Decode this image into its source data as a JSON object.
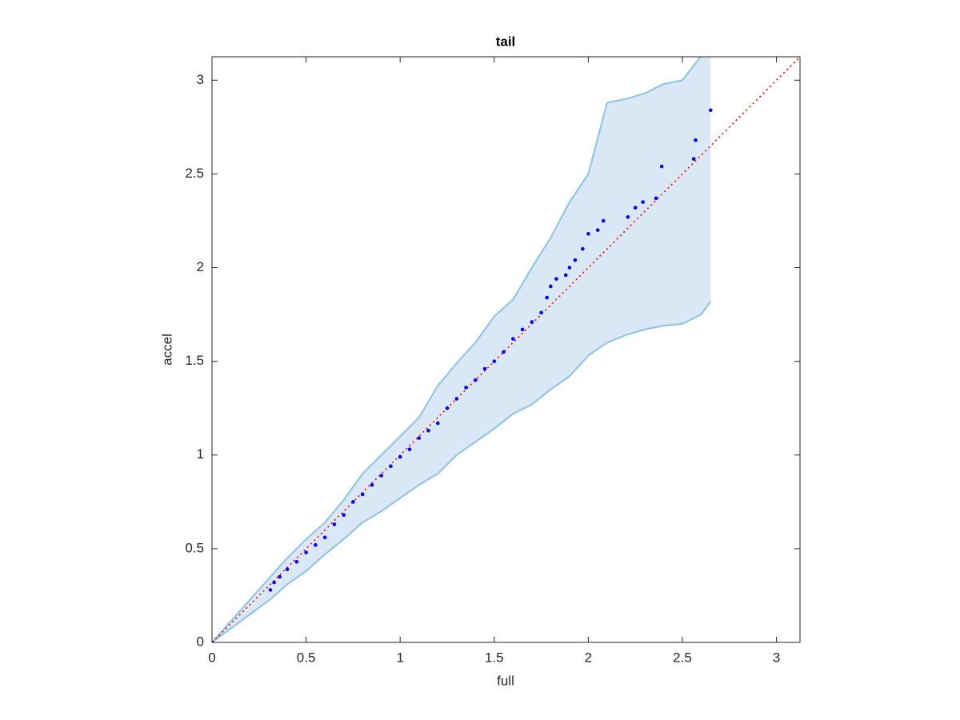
{
  "chart_data": {
    "type": "scatter",
    "title": "tail",
    "x_label": "full",
    "y_label": "accel",
    "xlim": [
      0,
      3.125
    ],
    "ylim": [
      0,
      3.125
    ],
    "xticks": [
      0,
      0.5,
      1,
      1.5,
      2,
      2.5,
      3
    ],
    "yticks": [
      0,
      0.5,
      1,
      1.5,
      2,
      2.5,
      3
    ],
    "grid": false,
    "color": "#0000ff",
    "reference_color": "#ff0000",
    "band_fill": "#d9e8f4",
    "band_edge": "#8fc2e0",
    "x": [
      0,
      0.31,
      0.33,
      0.36,
      0.4,
      0.45,
      0.5,
      0.55,
      0.6,
      0.65,
      0.7,
      0.75,
      0.8,
      0.85,
      0.9,
      0.95,
      1.0,
      1.05,
      1.1,
      1.15,
      1.2,
      1.25,
      1.3,
      1.35,
      1.4,
      1.45,
      1.5,
      1.55,
      1.6,
      1.65,
      1.7,
      1.75,
      1.78,
      1.8,
      1.83,
      1.88,
      1.9,
      1.93,
      1.97,
      2.0,
      2.05,
      2.08,
      2.21,
      2.25,
      2.29,
      2.36,
      2.39,
      2.56,
      2.57,
      2.65
    ],
    "values": [
      0,
      0.28,
      0.32,
      0.35,
      0.39,
      0.43,
      0.48,
      0.52,
      0.56,
      0.63,
      0.68,
      0.75,
      0.79,
      0.84,
      0.89,
      0.94,
      0.99,
      1.03,
      1.09,
      1.13,
      1.17,
      1.25,
      1.3,
      1.36,
      1.4,
      1.46,
      1.5,
      1.55,
      1.62,
      1.67,
      1.71,
      1.76,
      1.84,
      1.9,
      1.94,
      1.96,
      2.0,
      2.04,
      2.1,
      2.18,
      2.2,
      2.25,
      2.27,
      2.32,
      2.35,
      2.37,
      2.54,
      2.58,
      2.68,
      2.84
    ],
    "band": {
      "x": [
        0,
        0.31,
        0.4,
        0.5,
        0.6,
        0.7,
        0.8,
        0.9,
        1.0,
        1.1,
        1.2,
        1.3,
        1.4,
        1.5,
        1.6,
        1.7,
        1.8,
        1.9,
        2.0,
        2.1,
        2.2,
        2.3,
        2.4,
        2.5,
        2.6,
        2.65
      ],
      "upper": [
        0,
        0.35,
        0.45,
        0.55,
        0.64,
        0.76,
        0.9,
        1.0,
        1.1,
        1.2,
        1.37,
        1.49,
        1.6,
        1.74,
        1.83,
        2.0,
        2.16,
        2.35,
        2.5,
        2.88,
        2.9,
        2.93,
        2.98,
        3.0,
        3.13,
        3.13
      ],
      "lower": [
        0,
        0.23,
        0.31,
        0.38,
        0.47,
        0.55,
        0.64,
        0.7,
        0.77,
        0.84,
        0.9,
        1.0,
        1.07,
        1.14,
        1.22,
        1.27,
        1.35,
        1.42,
        1.53,
        1.6,
        1.64,
        1.67,
        1.69,
        1.7,
        1.75,
        1.82
      ]
    }
  }
}
